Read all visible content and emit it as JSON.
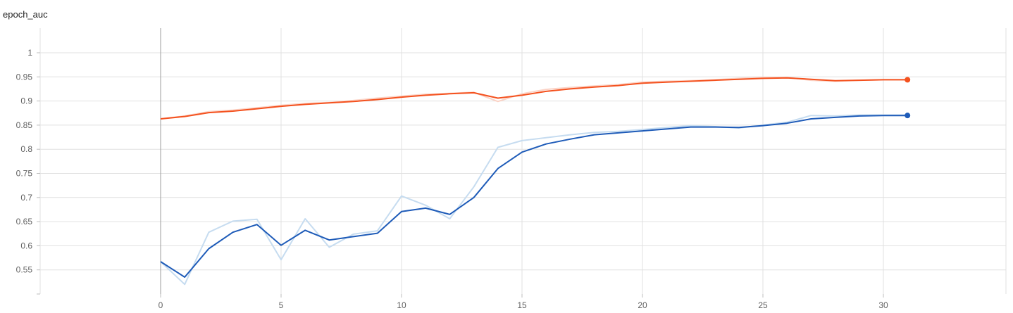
{
  "chart_title": "epoch_auc",
  "colors": {
    "series_orange": "#f4511e",
    "series_orange_raw": "#fbd3c6",
    "series_blue": "#1e5bb8",
    "series_blue_raw": "#c6dcf0",
    "grid": "#e0e0e0",
    "zero_line": "#9e9e9e"
  },
  "chart_data": {
    "type": "line",
    "title": "epoch_auc",
    "xlabel": "",
    "ylabel": "",
    "xlim": [
      -10,
      35
    ],
    "ylim": [
      0.5,
      1.05
    ],
    "x_ticks": [
      0,
      5,
      10,
      15,
      20,
      25,
      30
    ],
    "y_ticks": [
      0.55,
      0.6,
      0.65,
      0.7,
      0.75,
      0.8,
      0.85,
      0.9,
      0.95,
      1
    ],
    "grid": true,
    "x": [
      0,
      1,
      2,
      3,
      4,
      5,
      6,
      7,
      8,
      9,
      10,
      11,
      12,
      13,
      14,
      15,
      16,
      17,
      18,
      19,
      20,
      21,
      22,
      23,
      24,
      25,
      26,
      27,
      28,
      29,
      30,
      31
    ],
    "series": [
      {
        "color": "#f4511e",
        "raw_color": "#fbd3c6",
        "smoothed": [
          0.863,
          0.868,
          0.876,
          0.879,
          0.884,
          0.889,
          0.893,
          0.896,
          0.899,
          0.903,
          0.908,
          0.912,
          0.915,
          0.917,
          0.906,
          0.912,
          0.92,
          0.925,
          0.929,
          0.932,
          0.937,
          0.939,
          0.941,
          0.943,
          0.945,
          0.947,
          0.948,
          0.945,
          0.942,
          0.943,
          0.944,
          0.944
        ],
        "raw": [
          0.863,
          0.869,
          0.878,
          0.881,
          0.886,
          0.891,
          0.895,
          0.897,
          0.901,
          0.906,
          0.91,
          0.914,
          0.916,
          0.918,
          0.899,
          0.915,
          0.924,
          0.928,
          0.931,
          0.934,
          0.939,
          0.941,
          0.942,
          0.944,
          0.947,
          0.949,
          0.949,
          0.943,
          0.941,
          0.943,
          0.944,
          0.944
        ]
      },
      {
        "color": "#1e5bb8",
        "raw_color": "#c6dcf0",
        "smoothed": [
          0.567,
          0.535,
          0.594,
          0.628,
          0.644,
          0.601,
          0.632,
          0.612,
          0.619,
          0.626,
          0.671,
          0.678,
          0.665,
          0.7,
          0.76,
          0.794,
          0.811,
          0.821,
          0.83,
          0.834,
          0.838,
          0.842,
          0.846,
          0.846,
          0.845,
          0.849,
          0.854,
          0.863,
          0.866,
          0.869,
          0.87,
          0.87
        ],
        "raw": [
          0.567,
          0.52,
          0.628,
          0.651,
          0.655,
          0.571,
          0.656,
          0.597,
          0.624,
          0.631,
          0.703,
          0.684,
          0.656,
          0.722,
          0.804,
          0.818,
          0.824,
          0.83,
          0.835,
          0.837,
          0.841,
          0.845,
          0.849,
          0.847,
          0.844,
          0.85,
          0.856,
          0.87,
          0.869,
          0.871,
          0.871,
          0.871
        ]
      }
    ]
  }
}
